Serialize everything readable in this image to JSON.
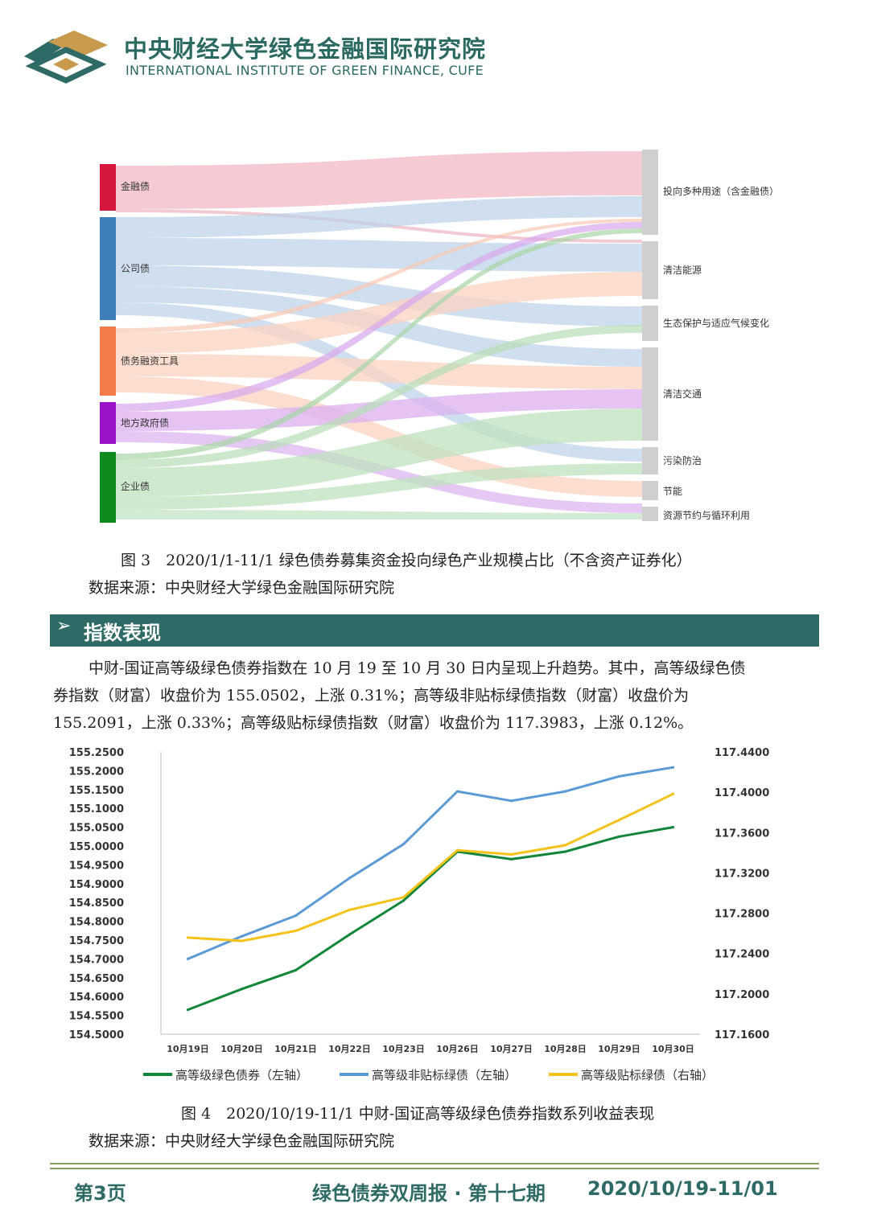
{
  "header": {
    "org_cn": "中央财经大学绿色金融国际研究院",
    "org_en": "INTERNATIONAL INSTITUTE OF GREEN FINANCE, CUFE"
  },
  "figure3": {
    "caption": "图 3　2020/1/1-11/1 绿色债券募集资金投向绿色产业规模占比（不含资产证券化）",
    "source": "数据来源：中央财经大学绿色金融国际研究院",
    "sources": [
      {
        "label": "金融债",
        "color": "#d6173f"
      },
      {
        "label": "公司债",
        "color": "#3d7fba"
      },
      {
        "label": "债务融资工具",
        "color": "#f47c4a"
      },
      {
        "label": "地方政府债",
        "color": "#9b13c9"
      },
      {
        "label": "企业债",
        "color": "#0f8a1e"
      }
    ],
    "targets": [
      {
        "label": "投向多种用途（含金融债）"
      },
      {
        "label": "清洁能源"
      },
      {
        "label": "生态保护与适应气候变化"
      },
      {
        "label": "清洁交通"
      },
      {
        "label": "污染防治"
      },
      {
        "label": "节能"
      },
      {
        "label": "资源节约与循环利用"
      }
    ]
  },
  "section": {
    "arrow": "➢",
    "title": "指数表现"
  },
  "paragraph": {
    "line1": "中财-国证高等级绿色债券指数在 10 月 19 至 10 月 30 日内呈现上升趋势。其中，高等级绿色债",
    "line2": "券指数（财富）收盘价为 155.0502，上涨 0.31%；高等级非贴标绿债指数（财富）收盘价为",
    "line3": "155.2091，上涨 0.33%；高等级贴标绿债指数（财富）收盘价为 117.3983，上涨 0.12%。"
  },
  "chart_data": {
    "type": "line",
    "title": "",
    "x": [
      "10月19日",
      "10月20日",
      "10月21日",
      "10月22日",
      "10月23日",
      "10月26日",
      "10月27日",
      "10月28日",
      "10月29日",
      "10月30日"
    ],
    "y_left_ticks": [
      "155.2500",
      "155.2000",
      "155.1500",
      "155.1000",
      "155.0500",
      "155.0000",
      "154.9500",
      "154.9000",
      "154.8500",
      "154.8000",
      "154.7500",
      "154.7000",
      "154.6500",
      "154.6000",
      "154.5500",
      "154.5000"
    ],
    "y_right_ticks": [
      "117.4400",
      "117.4000",
      "117.3600",
      "117.3200",
      "117.2800",
      "117.2400",
      "117.2000",
      "117.1600"
    ],
    "ylim_left": [
      154.5,
      155.25
    ],
    "ylim_right": [
      117.16,
      117.44
    ],
    "legend_position": "bottom",
    "series": [
      {
        "name": "高等级绿色债券（左轴）",
        "axis": "left",
        "color": "#12873a",
        "values": [
          154.565,
          154.62,
          154.67,
          154.765,
          154.855,
          154.985,
          154.965,
          154.985,
          155.025,
          155.05
        ]
      },
      {
        "name": "高等级非贴标绿债（左轴）",
        "axis": "left",
        "color": "#5b9bd5",
        "values": [
          154.7,
          154.76,
          154.815,
          154.915,
          155.005,
          155.145,
          155.12,
          155.145,
          155.185,
          155.209
        ]
      },
      {
        "name": "高等级贴标绿债（右轴）",
        "axis": "right",
        "color": "#f5c21b",
        "values": [
          117.2558,
          117.2525,
          117.2625,
          117.2833,
          117.2958,
          117.3425,
          117.3383,
          117.3475,
          117.3725,
          117.3983
        ]
      }
    ]
  },
  "figure4": {
    "caption": "图 4　2020/10/19-11/1 中财-国证高等级绿色债券指数系列收益表现",
    "source": "数据来源：中央财经大学绿色金融国际研究院"
  },
  "footer": {
    "page": "第3页",
    "publication": "绿色债券双周报 · 第十七期",
    "date": "2020/10/19-11/01"
  }
}
